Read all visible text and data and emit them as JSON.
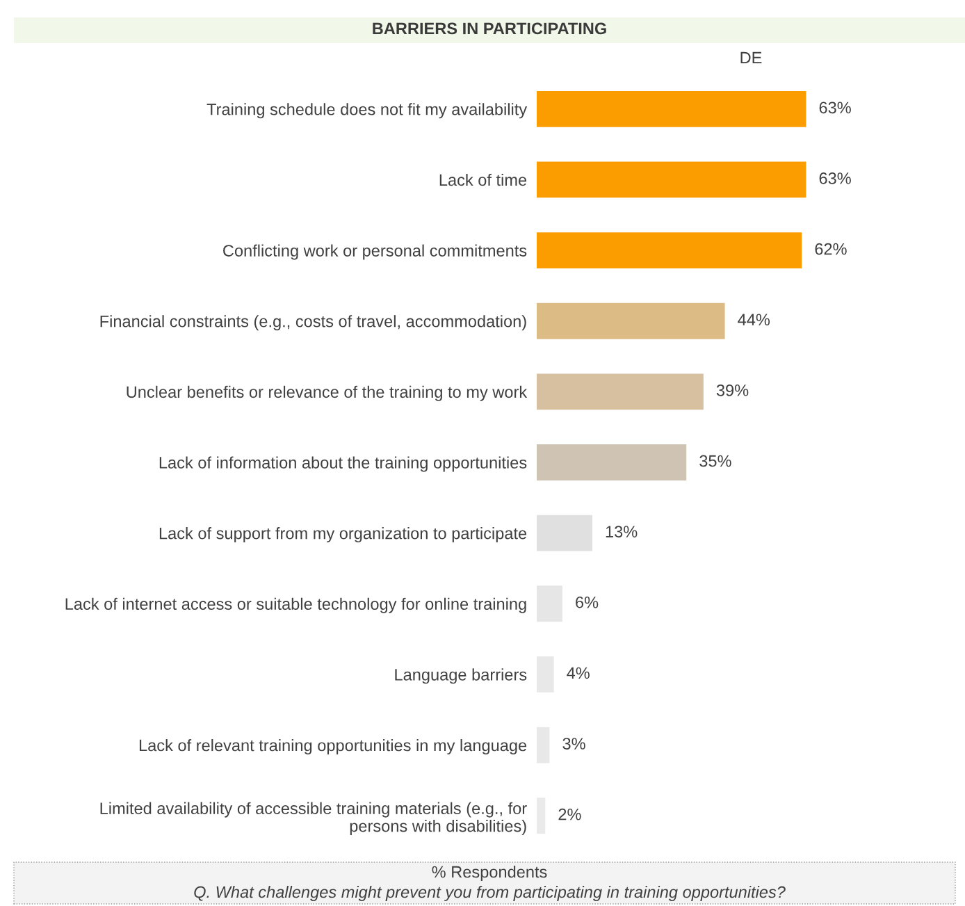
{
  "chart_data": {
    "type": "bar",
    "orientation": "horizontal",
    "title": "BARRIERS IN PARTICIPATING",
    "subtitle": "DE",
    "categories": [
      "Training schedule does not fit my availability",
      "Lack of time",
      "Conflicting work or personal commitments",
      "Financial constraints (e.g., costs of travel, accommodation)",
      "Unclear benefits or relevance of the training to my work",
      "Lack of information about the training opportunities",
      "Lack of support from my organization to participate",
      "Lack of internet access or suitable technology for online training",
      "Language barriers",
      "Lack of relevant training opportunities in my language",
      "Limited availability of accessible training materials (e.g., for\npersons with disabilities)"
    ],
    "values": [
      63,
      63,
      62,
      44,
      39,
      35,
      13,
      6,
      4,
      3,
      2
    ],
    "colors": [
      "#fb9c00",
      "#fb9c00",
      "#fb9c00",
      "#dcbb85",
      "#d6c0a0",
      "#cfc4b4",
      "#e0e0e0",
      "#e6e6e6",
      "#e8e8e8",
      "#e8e8e8",
      "#eaeaea"
    ],
    "value_labels": [
      "63%",
      "63%",
      "62%",
      "44%",
      "39%",
      "35%",
      "13%",
      "6%",
      "4%",
      "3%",
      "2%"
    ],
    "tick_labels": "y",
    "grid": false,
    "legend": false,
    "annotations": [
      "% Respondents",
      "Q. What challenges might prevent you from participating in training opportunities?"
    ]
  }
}
